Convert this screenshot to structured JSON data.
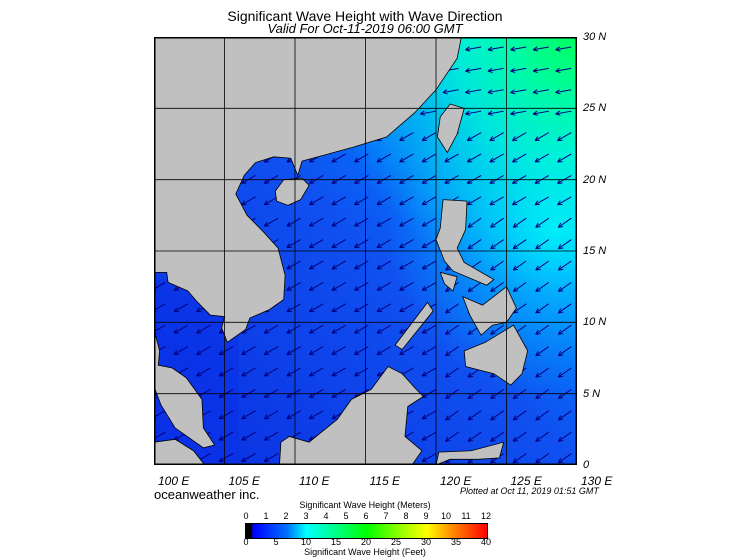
{
  "header": {
    "title": "Significant Wave Height with Wave Direction",
    "subtitle": "Valid For Oct-11-2019 06:00 GMT"
  },
  "map": {
    "lon_range": [
      100,
      130
    ],
    "lat_range": [
      0,
      30
    ],
    "grid_interval_deg": 5,
    "lat_labels": [
      "30 N",
      "25 N",
      "20 N",
      "15 N",
      "10 N",
      "5 N",
      "0"
    ],
    "lon_labels": [
      "100 E",
      "105 E",
      "110 E",
      "115 E",
      "120 E",
      "125 E",
      "130 E"
    ],
    "wave_direction": "from northeast (arrows pointing southwest)",
    "colors": {
      "land": "#c0c0c0",
      "ocean_low": "#0a2ee0",
      "ocean_mid": "#0080ff",
      "ocean_high": "#00ff80",
      "arrow": "#000080"
    }
  },
  "footer": {
    "brand": "oceanweather inc.",
    "plotted": "Plotted at Oct 11, 2019 01:51 GMT"
  },
  "colorbar": {
    "title_meters": "Significant Wave Height (Meters)",
    "title_feet": "Significant Wave Height (Feet)",
    "meters_ticks": [
      "0",
      "1",
      "2",
      "3",
      "4",
      "5",
      "6",
      "7",
      "8",
      "9",
      "10",
      "11",
      "12"
    ],
    "feet_ticks": [
      "0",
      "5",
      "10",
      "15",
      "20",
      "25",
      "30",
      "35",
      "40"
    ]
  }
}
